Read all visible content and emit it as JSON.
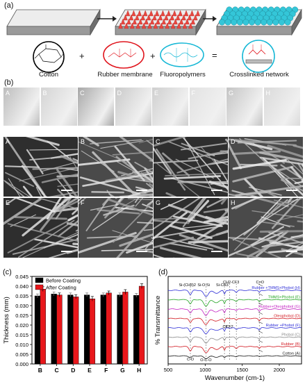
{
  "panel_a": {
    "label": "(a)",
    "names": [
      "Cotton",
      "Rubber membrane",
      "Fluoropolymers",
      "Crosslinked network"
    ],
    "operators": [
      "+",
      "+",
      "="
    ]
  },
  "panel_b": {
    "label": "(b)",
    "photo_labels": [
      "A",
      "B",
      "C",
      "D",
      "E",
      "F",
      "G",
      "H"
    ],
    "sem_labels": [
      "A",
      "B",
      "C",
      "D",
      "E",
      "F",
      "G",
      "H"
    ]
  },
  "chart_data": [
    {
      "type": "bar",
      "panel_label": "(c)",
      "categories": [
        "B",
        "C",
        "D",
        "E",
        "F",
        "G",
        "H"
      ],
      "series": [
        {
          "name": "Before Coating",
          "color": "#000000",
          "values": [
            0.035,
            0.036,
            0.0355,
            0.0355,
            0.0355,
            0.0355,
            0.0353
          ]
        },
        {
          "name": "After Coating",
          "color": "#e8171b",
          "values": [
            0.0385,
            0.0355,
            0.0345,
            0.0335,
            0.0365,
            0.037,
            0.04
          ]
        }
      ],
      "errors": [
        [
          0.001,
          0.001,
          0.001,
          0.001,
          0.001,
          0.001,
          0.001
        ],
        [
          0.0012,
          0.001,
          0.001,
          0.0012,
          0.001,
          0.0012,
          0.0012
        ]
      ],
      "ylabel": "Thickness (mm)",
      "xlabel": "",
      "ylim": [
        0,
        0.045
      ],
      "yticks": [
        "0.000",
        "0.005",
        "0.010",
        "0.015",
        "0.020",
        "0.025",
        "0.030",
        "0.035",
        "0.040",
        "0.045"
      ],
      "legend": "top-left"
    },
    {
      "type": "line",
      "panel_label": "(d)",
      "xlabel": "Wavenumber (cm-1)",
      "ylabel": "% Transmittance",
      "xlim": [
        500,
        2300
      ],
      "xticks": [
        "500",
        "1000",
        "1500",
        "2000"
      ],
      "peak_labels": [
        "Si-(CH3)2",
        "Si-O-Si",
        "Si-CH3",
        "CH2-CF3",
        "C=O",
        "CF",
        "CF2",
        "C-O",
        "O-C-O"
      ],
      "series": [
        {
          "name": "Rubber +TMMS+Phobol (H)",
          "color": "#2b2bd6"
        },
        {
          "name": "TMMS+Phobol (E)",
          "color": "#1fa31f"
        },
        {
          "name": "Rubber+Oleophobol (G)",
          "color": "#c21fc2"
        },
        {
          "name": "Oleophobol (D)",
          "color": "#d1161e"
        },
        {
          "name": "Rubber +Phobol (F)",
          "color": "#2b2bd6"
        },
        {
          "name": "Phobol (C)",
          "color": "#888888"
        },
        {
          "name": "Rubber (B)",
          "color": "#d1161e"
        },
        {
          "name": "Cotton (A)",
          "color": "#111111"
        }
      ]
    }
  ]
}
